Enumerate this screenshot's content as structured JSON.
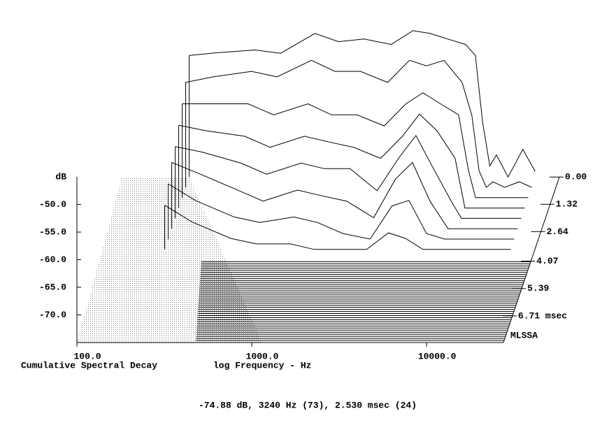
{
  "chart_data": {
    "type": "waterfall",
    "title": "Cumulative Spectral Decay",
    "x_label": "log Frequency - Hz",
    "y_label": "dB",
    "z_name": "MLSSA",
    "status": "-74.88 dB, 3240 Hz (73), 2.530 msec (24)",
    "log_x": true,
    "color": "#000000",
    "x": [
      210,
      300,
      500,
      700,
      1100,
      1500,
      2100,
      3000,
      4000,
      5000,
      6300,
      8000,
      9100,
      10000,
      11000,
      12000,
      14000,
      17000,
      20000
    ],
    "series": [
      {
        "z": 0,
        "values": [
          -53,
          -52.5,
          -52,
          -52.6,
          -49,
          -50.5,
          -50,
          -51,
          -48.5,
          -49,
          -50,
          -51,
          -53,
          -65,
          -73,
          -71,
          -75,
          -70,
          -74
        ]
      },
      {
        "z": 0.5,
        "values": [
          -56,
          -55,
          -54,
          -55,
          -52,
          -54,
          -54,
          -56,
          -52,
          -53,
          -52,
          -56,
          -62,
          -72,
          -75,
          -74,
          -75,
          -74,
          -75
        ]
      },
      {
        "z": 1.0,
        "values": [
          -58,
          -58,
          -58,
          -60,
          -58,
          -60,
          -60,
          -62,
          -58,
          -56,
          -58,
          -60,
          -70,
          -75,
          -75,
          -75,
          -75,
          -75,
          -75
        ]
      },
      {
        "z": 1.5,
        "values": [
          -60,
          -61,
          -62,
          -64,
          -62,
          -63,
          -64,
          -66,
          -62,
          -58,
          -61,
          -66,
          -75,
          -75,
          -75,
          -75,
          -75,
          -75,
          -75
        ]
      },
      {
        "z": 2.0,
        "values": [
          -62,
          -63,
          -65,
          -67,
          -65,
          -66,
          -66,
          -70,
          -64,
          -60,
          -66,
          -72,
          -75,
          -75,
          -75,
          -75,
          -75,
          -75,
          -75
        ]
      },
      {
        "z": 2.5,
        "values": [
          -63,
          -65,
          -68,
          -70,
          -68,
          -69,
          -70,
          -73,
          -66,
          -63,
          -70,
          -75,
          -75,
          -75,
          -75,
          -75,
          -75,
          -75,
          -75
        ]
      },
      {
        "z": 3.0,
        "values": [
          -65,
          -68,
          -71,
          -72,
          -71,
          -72,
          -74,
          -75,
          -69,
          -68,
          -74,
          -75,
          -75,
          -75,
          -75,
          -75,
          -75,
          -75,
          -75
        ]
      },
      {
        "z": 3.5,
        "values": [
          -67,
          -70,
          -73,
          -74,
          -74,
          -75,
          -75,
          -75,
          -72,
          -73,
          -75,
          -75,
          -75,
          -75,
          -75,
          -75,
          -75,
          -75,
          -75
        ]
      }
    ],
    "xlim": [
      100,
      27500
    ],
    "xticks": [
      {
        "value": 100,
        "label": "100.0"
      },
      {
        "value": 1000,
        "label": "1000.0"
      },
      {
        "value": 10000,
        "label": "10000.0"
      }
    ],
    "ylim": [
      -75,
      -45
    ],
    "yticks": [
      {
        "value": -50,
        "label": "-50.0"
      },
      {
        "value": -55,
        "label": "-55.0"
      },
      {
        "value": -60,
        "label": "-60.0"
      },
      {
        "value": -65,
        "label": "-65.0"
      },
      {
        "value": -70,
        "label": "-70.0"
      }
    ],
    "zlim": [
      0,
      8
    ],
    "zticks": [
      {
        "value": 0,
        "label": "0.00"
      },
      1.32,
      2.64,
      4.07,
      5.39,
      {
        "value": 6.71,
        "label": "6.71 msec"
      }
    ]
  }
}
